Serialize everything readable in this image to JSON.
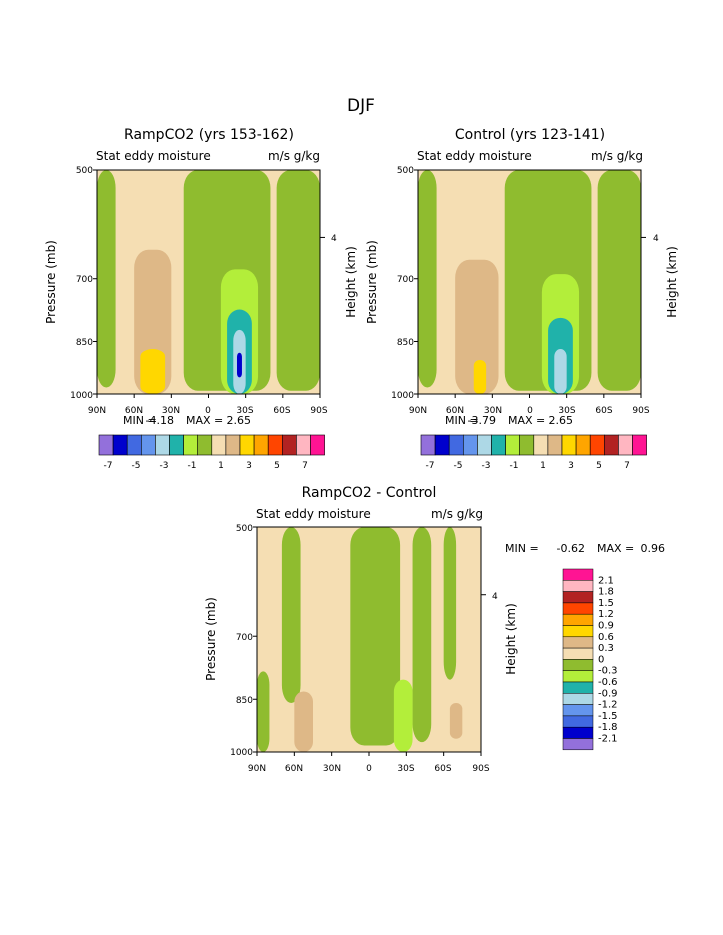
{
  "figure_title": "DJF",
  "panels": [
    {
      "title": "RampCO2 (yrs 153-162)",
      "subtitle": "Stat eddy moisture",
      "units": "m/s g/kg",
      "ylabel": "Pressure (mb)",
      "ylabel_right": "Height (km)",
      "right_tick": "4",
      "yticks": [
        "500",
        "700",
        "850",
        "1000"
      ],
      "xticks": [
        "90N",
        "60N",
        "30N",
        "0",
        "30S",
        "60S",
        "90S"
      ],
      "min_label": "MIN =",
      "min_value": "-4.18",
      "max_label": "MAX =",
      "max_value": "2.65",
      "colorbar_labels": [
        "-7",
        "-5",
        "-3",
        "-1",
        "1",
        "3",
        "5",
        "7"
      ]
    },
    {
      "title": "Control (yrs 123-141)",
      "subtitle": "Stat eddy moisture",
      "units": "m/s g/kg",
      "ylabel": "Pressure (mb)",
      "ylabel_right": "Height (km)",
      "right_tick": "4",
      "yticks": [
        "500",
        "700",
        "850",
        "1000"
      ],
      "xticks": [
        "90N",
        "60N",
        "30N",
        "0",
        "30S",
        "60S",
        "90S"
      ],
      "min_label": "MIN =",
      "min_value": "-3.79",
      "max_label": "MAX =",
      "max_value": "2.65",
      "colorbar_labels": [
        "-7",
        "-5",
        "-3",
        "-1",
        "1",
        "3",
        "5",
        "7"
      ]
    },
    {
      "title": "RampCO2 - Control",
      "subtitle": "Stat eddy moisture",
      "units": "m/s g/kg",
      "ylabel": "Pressure (mb)",
      "ylabel_right": "Height (km)",
      "right_tick": "4",
      "yticks": [
        "500",
        "700",
        "850",
        "1000"
      ],
      "xticks": [
        "90N",
        "60N",
        "30N",
        "0",
        "30S",
        "60S",
        "90S"
      ],
      "min_label": "MIN =",
      "min_value": "-0.62",
      "max_label": "MAX =",
      "max_value": "0.96",
      "colorbar_labels": [
        "2.1",
        "1.8",
        "1.5",
        "1.2",
        "0.9",
        "0.6",
        "0.3",
        "0",
        "-0.3",
        "-0.6",
        "-0.9",
        "-1.2",
        "-1.5",
        "-1.8",
        "-2.1"
      ]
    }
  ],
  "colors": {
    "contour_palette": [
      "#9370db",
      "#0000cd",
      "#4169e1",
      "#6495ed",
      "#add8e6",
      "#20b2aa",
      "#b3ee3a",
      "#8fbc2f",
      "#f5deb3",
      "#deb887",
      "#ffd700",
      "#ffa500",
      "#ff4500",
      "#b22222",
      "#ffb6c1",
      "#ff1493"
    ]
  },
  "chart_data": [
    {
      "type": "heatmap",
      "title": "RampCO2 (yrs 153-162)",
      "subtitle": "Stat eddy moisture",
      "units": "m/s g/kg",
      "xlabel": "",
      "ylabel": "Pressure (mb)",
      "ylabel_right": "Height (km)",
      "x_ticks": [
        "90N",
        "60N",
        "30N",
        "0",
        "30S",
        "60S",
        "90S"
      ],
      "y_ticks": [
        500,
        700,
        850,
        1000
      ],
      "xlim": [
        90,
        -90
      ],
      "ylim": [
        1000,
        500
      ],
      "min": -4.18,
      "max": 2.65,
      "contour_levels": [
        -7,
        -6,
        -5,
        -4,
        -3,
        -2,
        -1,
        0,
        1,
        2,
        3,
        4,
        5,
        6,
        7
      ],
      "background_level": 0.5,
      "regions": [
        {
          "level": -0.5,
          "lat_range": [
            90,
            75
          ],
          "p_range": [
            500,
            980
          ]
        },
        {
          "level": -0.5,
          "lat_range": [
            20,
            -50
          ],
          "p_range": [
            500,
            990
          ]
        },
        {
          "level": -0.5,
          "lat_range": [
            -55,
            -90
          ],
          "p_range": [
            500,
            990
          ]
        },
        {
          "level": 1.5,
          "lat_range": [
            60,
            30
          ],
          "p_range": [
            640,
            1000
          ]
        },
        {
          "level": 2.5,
          "lat_range": [
            55,
            35
          ],
          "p_range": [
            870,
            1000
          ]
        },
        {
          "level": -1.5,
          "lat_range": [
            -10,
            -40
          ],
          "p_range": [
            680,
            1000
          ]
        },
        {
          "level": -2.5,
          "lat_range": [
            -15,
            -35
          ],
          "p_range": [
            770,
            1000
          ]
        },
        {
          "level": -3.5,
          "lat_range": [
            -20,
            -30
          ],
          "p_range": [
            820,
            1000
          ]
        },
        {
          "level": -6.5,
          "lat_range": [
            -23,
            -27
          ],
          "p_range": [
            880,
            950
          ]
        }
      ]
    },
    {
      "type": "heatmap",
      "title": "Control (yrs 123-141)",
      "subtitle": "Stat eddy moisture",
      "units": "m/s g/kg",
      "xlabel": "",
      "ylabel": "Pressure (mb)",
      "ylabel_right": "Height (km)",
      "x_ticks": [
        "90N",
        "60N",
        "30N",
        "0",
        "30S",
        "60S",
        "90S"
      ],
      "y_ticks": [
        500,
        700,
        850,
        1000
      ],
      "xlim": [
        90,
        -90
      ],
      "ylim": [
        1000,
        500
      ],
      "min": -3.79,
      "max": 2.65,
      "contour_levels": [
        -7,
        -6,
        -5,
        -4,
        -3,
        -2,
        -1,
        0,
        1,
        2,
        3,
        4,
        5,
        6,
        7
      ],
      "background_level": 0.5,
      "regions": [
        {
          "level": -0.5,
          "lat_range": [
            90,
            75
          ],
          "p_range": [
            500,
            980
          ]
        },
        {
          "level": -0.5,
          "lat_range": [
            20,
            -50
          ],
          "p_range": [
            500,
            990
          ]
        },
        {
          "level": -0.5,
          "lat_range": [
            -55,
            -90
          ],
          "p_range": [
            500,
            990
          ]
        },
        {
          "level": 1.5,
          "lat_range": [
            60,
            25
          ],
          "p_range": [
            660,
            1000
          ]
        },
        {
          "level": 2.5,
          "lat_range": [
            45,
            35
          ],
          "p_range": [
            900,
            1000
          ]
        },
        {
          "level": -1.5,
          "lat_range": [
            -10,
            -40
          ],
          "p_range": [
            690,
            1000
          ]
        },
        {
          "level": -2.5,
          "lat_range": [
            -15,
            -35
          ],
          "p_range": [
            790,
            1000
          ]
        },
        {
          "level": -3.5,
          "lat_range": [
            -20,
            -30
          ],
          "p_range": [
            870,
            1000
          ]
        }
      ]
    },
    {
      "type": "heatmap",
      "title": "RampCO2 - Control",
      "subtitle": "Stat eddy moisture",
      "units": "m/s g/kg",
      "xlabel": "",
      "ylabel": "Pressure (mb)",
      "ylabel_right": "Height (km)",
      "x_ticks": [
        "90N",
        "60N",
        "30N",
        "0",
        "30S",
        "60S",
        "90S"
      ],
      "y_ticks": [
        500,
        700,
        850,
        1000
      ],
      "xlim": [
        90,
        -90
      ],
      "ylim": [
        1000,
        500
      ],
      "min": -0.62,
      "max": 0.96,
      "contour_levels": [
        -2.1,
        -1.8,
        -1.5,
        -1.2,
        -0.9,
        -0.6,
        -0.3,
        0,
        0.3,
        0.6,
        0.9,
        1.2,
        1.5,
        1.8,
        2.1
      ],
      "background_level": 0.15,
      "regions": [
        {
          "level": -0.15,
          "lat_range": [
            70,
            55
          ],
          "p_range": [
            500,
            860
          ]
        },
        {
          "level": -0.15,
          "lat_range": [
            15,
            -25
          ],
          "p_range": [
            500,
            980
          ]
        },
        {
          "level": -0.15,
          "lat_range": [
            -35,
            -50
          ],
          "p_range": [
            500,
            970
          ]
        },
        {
          "level": -0.15,
          "lat_range": [
            -60,
            -70
          ],
          "p_range": [
            500,
            800
          ]
        },
        {
          "level": -0.15,
          "lat_range": [
            90,
            80
          ],
          "p_range": [
            780,
            1000
          ]
        },
        {
          "level": -0.45,
          "lat_range": [
            -20,
            -35
          ],
          "p_range": [
            800,
            1000
          ]
        },
        {
          "level": 0.45,
          "lat_range": [
            60,
            45
          ],
          "p_range": [
            830,
            1000
          ]
        },
        {
          "level": 0.45,
          "lat_range": [
            -65,
            -75
          ],
          "p_range": [
            860,
            960
          ]
        }
      ]
    }
  ]
}
